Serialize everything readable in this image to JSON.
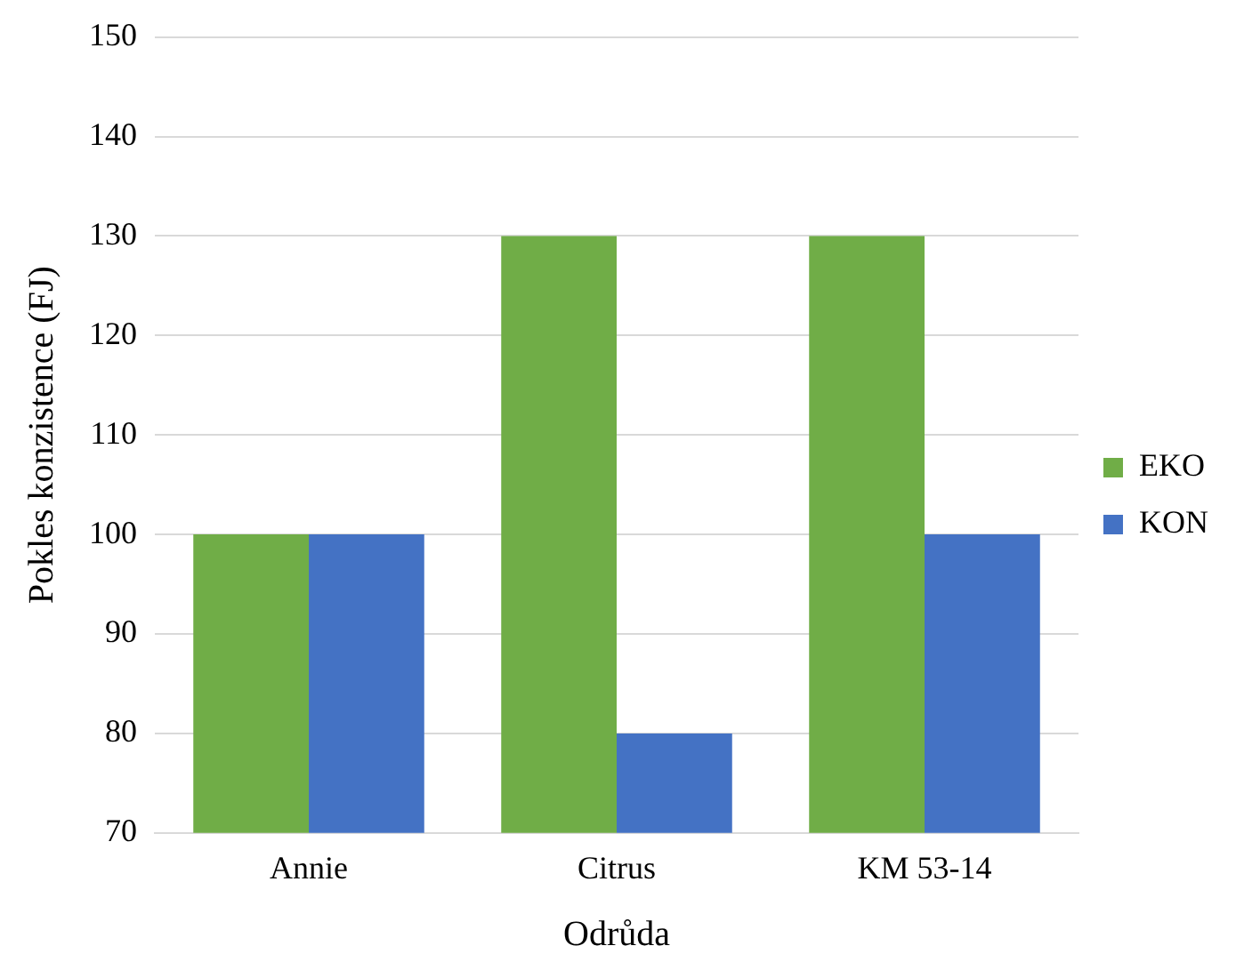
{
  "chart_data": {
    "type": "bar",
    "xlabel": "Odrůda",
    "ylabel": "Pokles konzistence (FJ)",
    "categories": [
      "Annie",
      "Citrus",
      "KM 53-14"
    ],
    "series": [
      {
        "name": "EKO",
        "color": "#70ad47",
        "values": [
          100,
          130,
          130
        ]
      },
      {
        "name": "KON",
        "color": "#4472c4",
        "values": [
          100,
          80,
          100
        ]
      }
    ],
    "ylim": [
      70,
      150
    ],
    "yticks": [
      70,
      80,
      90,
      100,
      110,
      120,
      130,
      140,
      150
    ],
    "grid": "y",
    "legend": "right"
  }
}
